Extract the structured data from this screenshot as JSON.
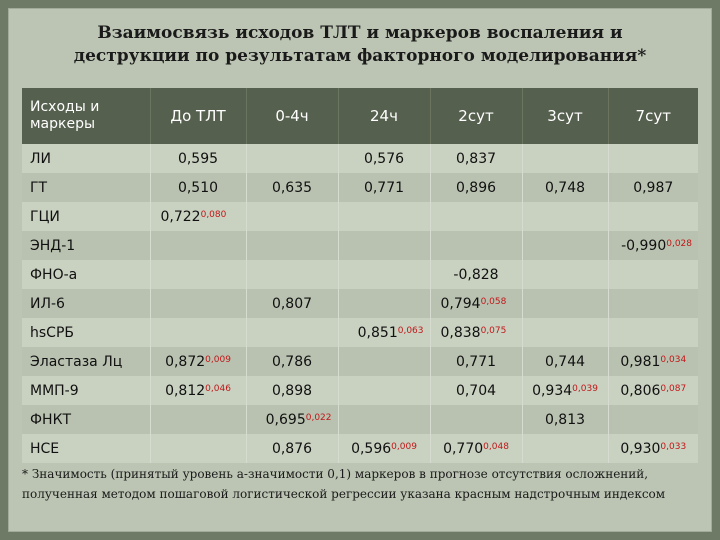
{
  "title_line1": "Взаимосвязь исходов ТЛТ и маркеров воспаления и",
  "title_line2": "деструкции по результатам факторного моделирования*",
  "header": {
    "col0": "Исходы и маркеры",
    "col1": "До ТЛТ",
    "col2": "0-4ч",
    "col3": "24ч",
    "col4": "2сут",
    "col5": "3сут",
    "col6": "7сут"
  },
  "rows": [
    {
      "label": "ЛИ",
      "c1": {
        "v": "0,595",
        "p": ""
      },
      "c2": {
        "v": "",
        "p": ""
      },
      "c3": {
        "v": "0,576",
        "p": ""
      },
      "c4": {
        "v": "0,837",
        "p": ""
      },
      "c5": {
        "v": "",
        "p": ""
      },
      "c6": {
        "v": "",
        "p": ""
      }
    },
    {
      "label": "ГТ",
      "c1": {
        "v": "0,510",
        "p": ""
      },
      "c2": {
        "v": "0,635",
        "p": ""
      },
      "c3": {
        "v": "0,771",
        "p": ""
      },
      "c4": {
        "v": "0,896",
        "p": ""
      },
      "c5": {
        "v": "0,748",
        "p": ""
      },
      "c6": {
        "v": "0,987",
        "p": ""
      }
    },
    {
      "label": "ГЦИ",
      "c1": {
        "v": "0,722",
        "p": "0,080"
      },
      "c2": {
        "v": "",
        "p": ""
      },
      "c3": {
        "v": "",
        "p": ""
      },
      "c4": {
        "v": "",
        "p": ""
      },
      "c5": {
        "v": "",
        "p": ""
      },
      "c6": {
        "v": "",
        "p": ""
      }
    },
    {
      "label": "ЭНД-1",
      "c1": {
        "v": "",
        "p": ""
      },
      "c2": {
        "v": "",
        "p": ""
      },
      "c3": {
        "v": "",
        "p": ""
      },
      "c4": {
        "v": "",
        "p": ""
      },
      "c5": {
        "v": "",
        "p": ""
      },
      "c6": {
        "v": "-0,990",
        "p": "0,028"
      }
    },
    {
      "label": "ФНО-а",
      "c1": {
        "v": "",
        "p": ""
      },
      "c2": {
        "v": "",
        "p": ""
      },
      "c3": {
        "v": "",
        "p": ""
      },
      "c4": {
        "v": "-0,828",
        "p": ""
      },
      "c5": {
        "v": "",
        "p": ""
      },
      "c6": {
        "v": "",
        "p": ""
      }
    },
    {
      "label": "ИЛ-6",
      "c1": {
        "v": "",
        "p": ""
      },
      "c2": {
        "v": "0,807",
        "p": ""
      },
      "c3": {
        "v": "",
        "p": ""
      },
      "c4": {
        "v": "0,794",
        "p": "0,058"
      },
      "c5": {
        "v": "",
        "p": ""
      },
      "c6": {
        "v": "",
        "p": ""
      }
    },
    {
      "label": "hsСРБ",
      "c1": {
        "v": "",
        "p": ""
      },
      "c2": {
        "v": "",
        "p": ""
      },
      "c3": {
        "v": "0,851",
        "p": "0,063"
      },
      "c4": {
        "v": "0,838",
        "p": "0,075"
      },
      "c5": {
        "v": "",
        "p": ""
      },
      "c6": {
        "v": "",
        "p": ""
      }
    },
    {
      "label": "Эластаза Лц",
      "c1": {
        "v": "0,872",
        "p": "0,009"
      },
      "c2": {
        "v": "0,786",
        "p": ""
      },
      "c3": {
        "v": "",
        "p": ""
      },
      "c4": {
        "v": "0,771",
        "p": ""
      },
      "c5": {
        "v": "0,744",
        "p": ""
      },
      "c6": {
        "v": "0,981",
        "p": "0,034"
      }
    },
    {
      "label": "ММП-9",
      "c1": {
        "v": "0,812",
        "p": "0,046"
      },
      "c2": {
        "v": "0,898",
        "p": ""
      },
      "c3": {
        "v": "",
        "p": ""
      },
      "c4": {
        "v": "0,704",
        "p": ""
      },
      "c5": {
        "v": "0,934",
        "p": "0,039"
      },
      "c6": {
        "v": "0,806",
        "p": "0,087"
      }
    },
    {
      "label": "ФНКТ",
      "c1": {
        "v": "",
        "p": ""
      },
      "c2": {
        "v": "0,695",
        "p": "0,022"
      },
      "c3": {
        "v": "",
        "p": ""
      },
      "c4": {
        "v": "",
        "p": ""
      },
      "c5": {
        "v": "0,813",
        "p": ""
      },
      "c6": {
        "v": "",
        "p": ""
      }
    },
    {
      "label": "НСЕ",
      "c1": {
        "v": "",
        "p": ""
      },
      "c2": {
        "v": "0,876",
        "p": ""
      },
      "c3": {
        "v": "0,596",
        "p": "0,009"
      },
      "c4": {
        "v": "0,770",
        "p": "0,048"
      },
      "c5": {
        "v": "",
        "p": ""
      },
      "c6": {
        "v": "0,930",
        "p": "0,033"
      }
    }
  ],
  "footnote": "* Значимость (принятый уровень а-значимости 0,1) маркеров в прогнозе отсутствия осложнений, полученная методом пошаговой логистической регрессии указана красным надстрочным индексом",
  "colors": {
    "header_bg": "#56604e",
    "frame_bg": "#bcc5b3",
    "significance": "#c0181a"
  }
}
